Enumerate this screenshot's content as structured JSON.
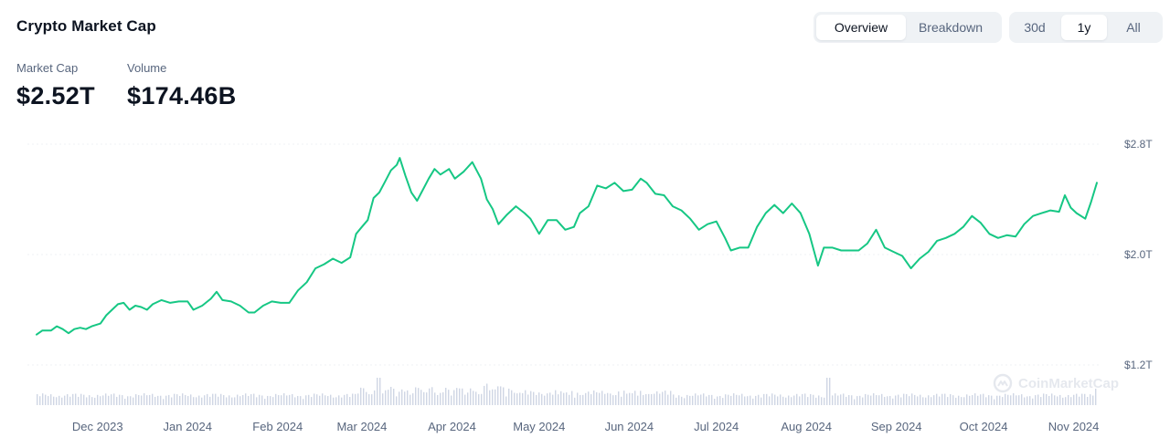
{
  "header": {
    "title": "Crypto Market Cap",
    "view_tabs": [
      {
        "label": "Overview",
        "active": true
      },
      {
        "label": "Breakdown",
        "active": false
      }
    ],
    "range_tabs": [
      {
        "label": "30d",
        "active": false
      },
      {
        "label": "1y",
        "active": true
      },
      {
        "label": "All",
        "active": false
      }
    ]
  },
  "stats": [
    {
      "label": "Market Cap",
      "value": "$2.52T"
    },
    {
      "label": "Volume",
      "value": "$174.46B"
    }
  ],
  "watermark": "CoinMarketCap",
  "colors": {
    "line": "#16c784",
    "volume": "#cfd6e4",
    "grid": "#eff2f5",
    "text_secondary": "#58667e"
  },
  "chart_data": {
    "type": "line",
    "title": "",
    "y_axis_position": "right",
    "y_ticks": [
      "$2.8T",
      "$2.0T",
      "$1.2T"
    ],
    "y_tick_values": [
      2.8,
      2.0,
      1.2
    ],
    "ylim": [
      1.2,
      2.8
    ],
    "x_ticks": [
      "Dec 2023",
      "Jan 2024",
      "Feb 2024",
      "Mar 2024",
      "Apr 2024",
      "May 2024",
      "Jun 2024",
      "Jul 2024",
      "Aug 2024",
      "Sep 2024",
      "Oct 2024",
      "Nov 2024"
    ],
    "x_tick_dates": [
      "2023-12-01",
      "2024-01-01",
      "2024-02-01",
      "2024-03-01",
      "2024-04-01",
      "2024-05-01",
      "2024-06-01",
      "2024-07-01",
      "2024-08-01",
      "2024-09-01",
      "2024-10-01",
      "2024-11-01"
    ],
    "grid": true,
    "series": [
      {
        "values": [
          [
            "2023-11-10",
            1.42
          ],
          [
            "2023-11-12",
            1.45
          ],
          [
            "2023-11-15",
            1.45
          ],
          [
            "2023-11-17",
            1.48
          ],
          [
            "2023-11-19",
            1.46
          ],
          [
            "2023-11-21",
            1.43
          ],
          [
            "2023-11-23",
            1.46
          ],
          [
            "2023-11-25",
            1.47
          ],
          [
            "2023-11-27",
            1.46
          ],
          [
            "2023-11-29",
            1.48
          ],
          [
            "2023-12-02",
            1.5
          ],
          [
            "2023-12-04",
            1.56
          ],
          [
            "2023-12-06",
            1.6
          ],
          [
            "2023-12-08",
            1.64
          ],
          [
            "2023-12-10",
            1.65
          ],
          [
            "2023-12-12",
            1.6
          ],
          [
            "2023-12-14",
            1.63
          ],
          [
            "2023-12-16",
            1.62
          ],
          [
            "2023-12-18",
            1.6
          ],
          [
            "2023-12-20",
            1.64
          ],
          [
            "2023-12-23",
            1.67
          ],
          [
            "2023-12-26",
            1.65
          ],
          [
            "2023-12-29",
            1.66
          ],
          [
            "2024-01-01",
            1.66
          ],
          [
            "2024-01-03",
            1.6
          ],
          [
            "2024-01-06",
            1.63
          ],
          [
            "2024-01-09",
            1.68
          ],
          [
            "2024-01-11",
            1.73
          ],
          [
            "2024-01-13",
            1.67
          ],
          [
            "2024-01-16",
            1.66
          ],
          [
            "2024-01-19",
            1.63
          ],
          [
            "2024-01-22",
            1.58
          ],
          [
            "2024-01-24",
            1.58
          ],
          [
            "2024-01-27",
            1.63
          ],
          [
            "2024-01-30",
            1.66
          ],
          [
            "2024-02-02",
            1.65
          ],
          [
            "2024-02-05",
            1.65
          ],
          [
            "2024-02-08",
            1.74
          ],
          [
            "2024-02-11",
            1.8
          ],
          [
            "2024-02-14",
            1.9
          ],
          [
            "2024-02-17",
            1.93
          ],
          [
            "2024-02-20",
            1.97
          ],
          [
            "2024-02-23",
            1.94
          ],
          [
            "2024-02-26",
            1.98
          ],
          [
            "2024-02-28",
            2.15
          ],
          [
            "2024-03-01",
            2.2
          ],
          [
            "2024-03-03",
            2.25
          ],
          [
            "2024-03-05",
            2.41
          ],
          [
            "2024-03-07",
            2.45
          ],
          [
            "2024-03-09",
            2.53
          ],
          [
            "2024-03-11",
            2.61
          ],
          [
            "2024-03-13",
            2.65
          ],
          [
            "2024-03-14",
            2.7
          ],
          [
            "2024-03-16",
            2.57
          ],
          [
            "2024-03-18",
            2.45
          ],
          [
            "2024-03-20",
            2.39
          ],
          [
            "2024-03-22",
            2.47
          ],
          [
            "2024-03-24",
            2.55
          ],
          [
            "2024-03-26",
            2.62
          ],
          [
            "2024-03-28",
            2.58
          ],
          [
            "2024-03-31",
            2.62
          ],
          [
            "2024-04-02",
            2.55
          ],
          [
            "2024-04-05",
            2.6
          ],
          [
            "2024-04-08",
            2.67
          ],
          [
            "2024-04-11",
            2.55
          ],
          [
            "2024-04-13",
            2.4
          ],
          [
            "2024-04-15",
            2.33
          ],
          [
            "2024-04-17",
            2.22
          ],
          [
            "2024-04-20",
            2.29
          ],
          [
            "2024-04-23",
            2.35
          ],
          [
            "2024-04-26",
            2.3
          ],
          [
            "2024-04-28",
            2.26
          ],
          [
            "2024-05-01",
            2.15
          ],
          [
            "2024-05-04",
            2.25
          ],
          [
            "2024-05-07",
            2.25
          ],
          [
            "2024-05-10",
            2.18
          ],
          [
            "2024-05-13",
            2.2
          ],
          [
            "2024-05-15",
            2.3
          ],
          [
            "2024-05-18",
            2.35
          ],
          [
            "2024-05-21",
            2.5
          ],
          [
            "2024-05-24",
            2.48
          ],
          [
            "2024-05-27",
            2.52
          ],
          [
            "2024-05-30",
            2.46
          ],
          [
            "2024-06-02",
            2.47
          ],
          [
            "2024-06-05",
            2.55
          ],
          [
            "2024-06-07",
            2.52
          ],
          [
            "2024-06-10",
            2.44
          ],
          [
            "2024-06-13",
            2.43
          ],
          [
            "2024-06-16",
            2.35
          ],
          [
            "2024-06-19",
            2.32
          ],
          [
            "2024-06-22",
            2.26
          ],
          [
            "2024-06-25",
            2.18
          ],
          [
            "2024-06-28",
            2.22
          ],
          [
            "2024-07-01",
            2.24
          ],
          [
            "2024-07-04",
            2.12
          ],
          [
            "2024-07-06",
            2.03
          ],
          [
            "2024-07-09",
            2.05
          ],
          [
            "2024-07-12",
            2.05
          ],
          [
            "2024-07-15",
            2.2
          ],
          [
            "2024-07-18",
            2.3
          ],
          [
            "2024-07-21",
            2.36
          ],
          [
            "2024-07-24",
            2.3
          ],
          [
            "2024-07-27",
            2.37
          ],
          [
            "2024-07-30",
            2.3
          ],
          [
            "2024-08-02",
            2.15
          ],
          [
            "2024-08-05",
            1.92
          ],
          [
            "2024-08-07",
            2.05
          ],
          [
            "2024-08-10",
            2.05
          ],
          [
            "2024-08-13",
            2.03
          ],
          [
            "2024-08-16",
            2.03
          ],
          [
            "2024-08-19",
            2.03
          ],
          [
            "2024-08-22",
            2.08
          ],
          [
            "2024-08-25",
            2.18
          ],
          [
            "2024-08-28",
            2.05
          ],
          [
            "2024-08-31",
            2.02
          ],
          [
            "2024-09-03",
            1.99
          ],
          [
            "2024-09-06",
            1.9
          ],
          [
            "2024-09-09",
            1.97
          ],
          [
            "2024-09-12",
            2.02
          ],
          [
            "2024-09-15",
            2.1
          ],
          [
            "2024-09-18",
            2.12
          ],
          [
            "2024-09-21",
            2.15
          ],
          [
            "2024-09-24",
            2.2
          ],
          [
            "2024-09-27",
            2.28
          ],
          [
            "2024-09-30",
            2.23
          ],
          [
            "2024-10-03",
            2.15
          ],
          [
            "2024-10-06",
            2.12
          ],
          [
            "2024-10-09",
            2.14
          ],
          [
            "2024-10-12",
            2.13
          ],
          [
            "2024-10-15",
            2.22
          ],
          [
            "2024-10-18",
            2.28
          ],
          [
            "2024-10-21",
            2.3
          ],
          [
            "2024-10-24",
            2.32
          ],
          [
            "2024-10-27",
            2.31
          ],
          [
            "2024-10-29",
            2.43
          ],
          [
            "2024-10-31",
            2.34
          ],
          [
            "2024-11-02",
            2.3
          ],
          [
            "2024-11-05",
            2.26
          ],
          [
            "2024-11-07",
            2.38
          ],
          [
            "2024-11-09",
            2.52
          ]
        ]
      }
    ]
  }
}
